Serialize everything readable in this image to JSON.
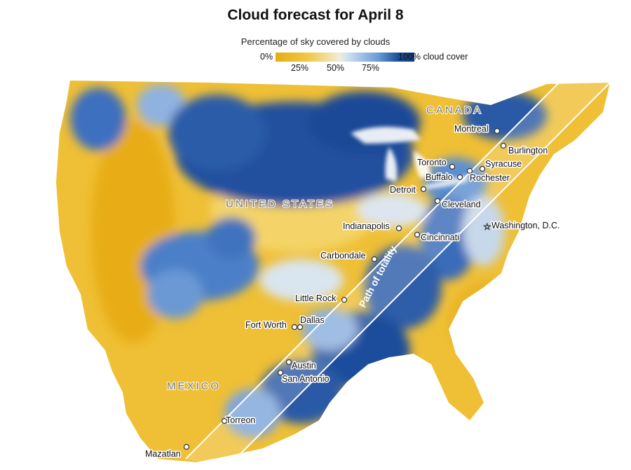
{
  "title": "Cloud forecast for April 8",
  "legend": {
    "subtitle": "Percentage of sky covered by clouds",
    "min_label": "0%",
    "max_label": "100% cloud cover",
    "ticks": [
      "25%",
      "50%",
      "75%"
    ],
    "colors": {
      "clear": "#e6ad14",
      "half": "#f2ecd8",
      "overcast": "#123a7b"
    }
  },
  "map": {
    "country_labels": [
      "CANADA",
      "UNITED STATES",
      "MEXICO"
    ],
    "path_label": "Path of totality",
    "cities": [
      {
        "name": "Montreal"
      },
      {
        "name": "Burlington"
      },
      {
        "name": "Toronto"
      },
      {
        "name": "Syracuse"
      },
      {
        "name": "Buffalo"
      },
      {
        "name": "Rochester"
      },
      {
        "name": "Detroit"
      },
      {
        "name": "Cleveland"
      },
      {
        "name": "Washington, D.C."
      },
      {
        "name": "Indianapolis"
      },
      {
        "name": "Cincinnati"
      },
      {
        "name": "Carbondale"
      },
      {
        "name": "Little Rock"
      },
      {
        "name": "Fort Worth"
      },
      {
        "name": "Dallas"
      },
      {
        "name": "Austin"
      },
      {
        "name": "San Antonio"
      },
      {
        "name": "Torreon"
      },
      {
        "name": "Mazatlan"
      }
    ]
  }
}
